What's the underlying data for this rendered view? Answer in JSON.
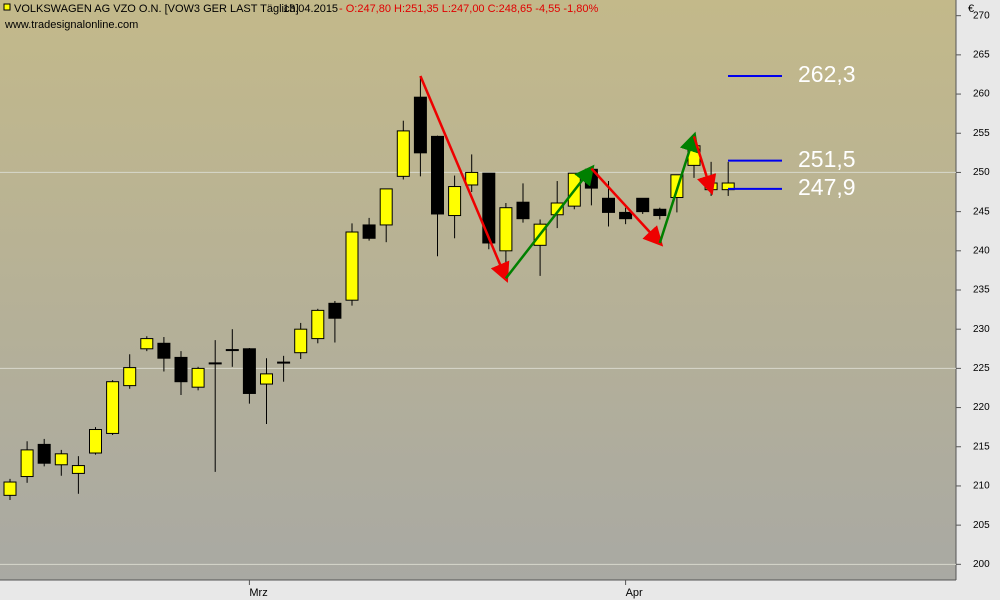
{
  "chart_data": {
    "type": "candlestick",
    "header": {
      "title": "VOLKSWAGEN AG VZO O.N. [VOW3 GER LAST Täglich]",
      "date": "13.04.2015",
      "ohlc": "- O:247,80 H:251,35 L:247,00 C:248,65 -4,55 -1,80%"
    },
    "source": "www.tradesignalonline.com",
    "y_unit": "€",
    "categories": [
      null,
      null,
      null,
      null,
      null,
      null,
      null,
      null,
      null,
      null,
      null,
      null,
      null,
      null,
      "Mrz",
      null,
      null,
      null,
      null,
      null,
      null,
      null,
      null,
      null,
      null,
      null,
      null,
      null,
      null,
      null,
      null,
      null,
      null,
      null,
      null,
      null,
      "Apr",
      null,
      null,
      null,
      null,
      null,
      null
    ],
    "open": [
      208.8,
      211.2,
      215.3,
      212.7,
      211.6,
      214.2,
      216.7,
      222.8,
      227.5,
      228.2,
      226.4,
      222.6,
      225.6,
      227.4,
      227.5,
      223.0,
      225.7,
      227.0,
      228.8,
      233.3,
      233.7,
      243.3,
      243.3,
      249.5,
      259.6,
      254.6,
      244.5,
      248.4,
      249.9,
      240.0,
      246.2,
      240.7,
      244.6,
      245.7,
      250.4,
      246.7,
      244.9,
      246.7,
      245.3,
      246.8,
      250.9,
      247.8,
      247.8
    ],
    "high": [
      210.9,
      215.7,
      216.0,
      214.6,
      213.8,
      217.5,
      223.5,
      226.8,
      229.1,
      229.0,
      227.2,
      225.2,
      228.6,
      230.0,
      227.6,
      226.3,
      226.6,
      230.8,
      232.6,
      233.6,
      243.5,
      244.2,
      247.9,
      256.6,
      262.3,
      254.7,
      249.6,
      252.3,
      249.9,
      246.1,
      248.6,
      244.0,
      248.9,
      249.9,
      250.5,
      248.9,
      245.5,
      246.7,
      245.5,
      249.7,
      254.7,
      251.35,
      251.35
    ],
    "low": [
      208.2,
      210.4,
      212.5,
      211.3,
      209.0,
      214.0,
      216.5,
      222.4,
      227.2,
      224.6,
      221.6,
      222.2,
      211.8,
      225.2,
      220.5,
      217.9,
      223.3,
      226.2,
      228.2,
      228.3,
      233.0,
      241.3,
      241.1,
      249.1,
      249.5,
      239.3,
      241.6,
      247.5,
      240.2,
      236.4,
      243.6,
      236.8,
      242.9,
      245.3,
      245.8,
      243.1,
      243.4,
      244.7,
      244.0,
      244.9,
      249.3,
      247.0,
      247.0
    ],
    "close": [
      210.5,
      214.6,
      212.9,
      214.1,
      212.6,
      217.2,
      223.3,
      225.1,
      228.8,
      226.3,
      223.3,
      225.0,
      225.7,
      227.3,
      221.8,
      224.3,
      225.8,
      230.0,
      232.4,
      231.4,
      242.4,
      241.6,
      247.9,
      255.3,
      252.5,
      244.7,
      248.2,
      250.0,
      241.0,
      245.5,
      244.1,
      243.4,
      246.1,
      249.9,
      248.0,
      244.9,
      244.1,
      245.0,
      244.5,
      249.7,
      253.4,
      248.65,
      248.65
    ],
    "up_color": "#ffff00",
    "down_color": "#000000",
    "ylim": [
      198,
      272
    ],
    "yticks": [
      200,
      205,
      210,
      215,
      220,
      225,
      230,
      235,
      240,
      245,
      250,
      255,
      260,
      265,
      270
    ],
    "grid_lines": [
      200,
      225,
      250
    ],
    "levels": [
      {
        "value": 262.3,
        "label": "262,3"
      },
      {
        "value": 251.5,
        "label": "251,5"
      },
      {
        "value": 247.9,
        "label": "247,9"
      }
    ],
    "level_color": "#0000ee",
    "zigzag": [
      {
        "index": 24,
        "value": 262.3
      },
      {
        "index": 29,
        "value": 236.5
      },
      {
        "index": 34,
        "value": 250.5
      },
      {
        "index": 38,
        "value": 241
      },
      {
        "index": 40,
        "value": 254.6
      },
      {
        "index": 41,
        "value": 247.7
      }
    ],
    "zigzag_up_color": "#008000",
    "zigzag_down_color": "#ee0000"
  }
}
